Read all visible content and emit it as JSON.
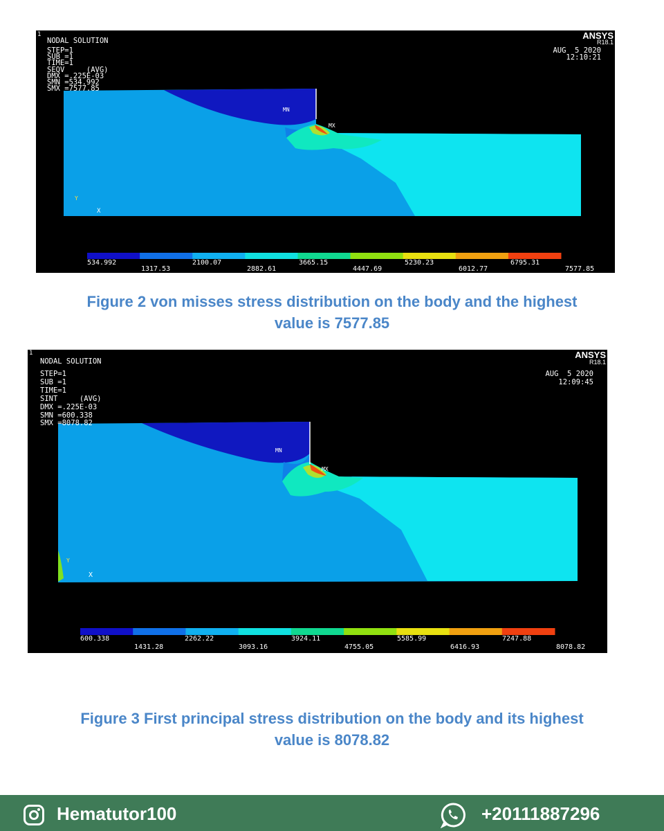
{
  "figures": [
    {
      "ansys": "ANSYS",
      "release": "R18.1",
      "date": "AUG  5 2020",
      "time": "12:10:21",
      "fig_no": "1",
      "header": [
        "NODAL SOLUTION",
        "STEP=1",
        "SUB =1",
        "TIME=1",
        "SEQV     (AVG)",
        "DMX =.225E-03",
        "SMN =534.992",
        "SMX =7577.85"
      ],
      "mn": "MN",
      "mx": "MX",
      "axis_y": "Y",
      "axis_x": "X",
      "legend_upper": [
        "534.992",
        "2100.07",
        "3665.15",
        "5230.23",
        "6795.31"
      ],
      "legend_lower": [
        "1317.53",
        "2882.61",
        "4447.69",
        "6012.77",
        "7577.85"
      ],
      "legend_colors": [
        "#1010c8",
        "#1070e8",
        "#10b0f0",
        "#10e0e0",
        "#10d890",
        "#90e010",
        "#e8e010",
        "#f0a010",
        "#f04010"
      ]
    },
    {
      "ansys": "ANSYS",
      "release": "R18.1",
      "date": "AUG  5 2020",
      "time": "12:09:45",
      "fig_no": "1",
      "header": [
        "NODAL SOLUTION",
        "STEP=1",
        "SUB =1",
        "TIME=1",
        "SINT     (AVG)",
        "DMX =.225E-03",
        "SMN =600.338",
        "SMX =8078.82"
      ],
      "mn": "MN",
      "mx": "MX",
      "axis_y": "Y",
      "axis_x": "X",
      "legend_upper": [
        "600.338",
        "2262.22",
        "3924.11",
        "5585.99",
        "7247.88"
      ],
      "legend_lower": [
        "1431.28",
        "3093.16",
        "4755.05",
        "6416.93",
        "8078.82"
      ],
      "legend_colors": [
        "#1010c8",
        "#1070e8",
        "#10b0f0",
        "#10e0e0",
        "#10d890",
        "#90e010",
        "#e8e010",
        "#f0a010",
        "#f04010"
      ]
    }
  ],
  "captions": {
    "fig2_line1": "Figure 2 von misses stress distribution on the body and the highest",
    "fig2_line2": "value is 7577.85",
    "fig3_line1": "Figure 3 First principal stress distribution on the body and its highest",
    "fig3_line2": "value is 8078.82"
  },
  "footer": {
    "instagram": "Hematutor100",
    "whatsapp": "+20111887296",
    "bg_color": "#3f7b57"
  }
}
